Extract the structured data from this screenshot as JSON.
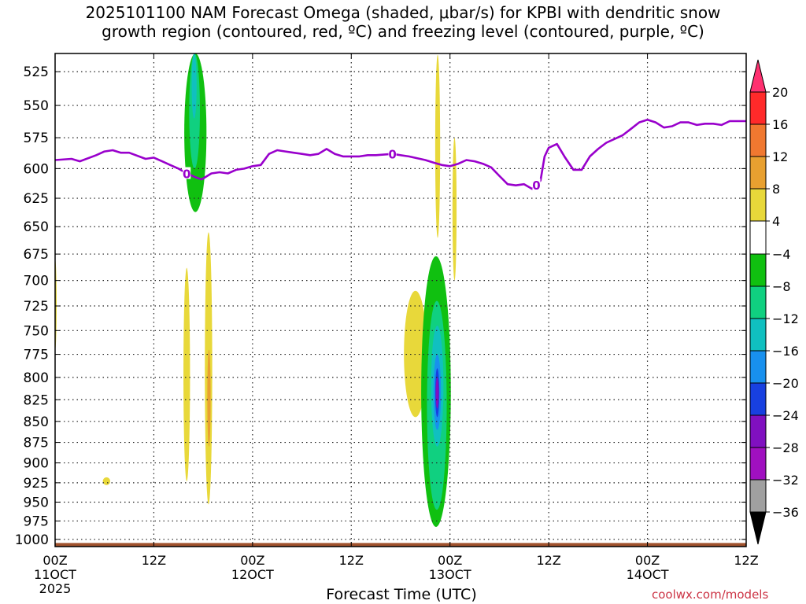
{
  "title": {
    "line1": "2025101100 NAM Forecast Omega (shaded, μbar/s) for KPBI with dendritic snow",
    "line2": "growth region (contoured, red, ºC) and freezing level (contoured, purple, ºC)"
  },
  "credit": "coolwx.com/models",
  "chart_data": {
    "type": "time-height cross section (filled contour)",
    "xlabel": "Forecast Time (UTC)",
    "ylabel": "",
    "x_ticks": [
      {
        "hour": 0,
        "lines": [
          "00Z",
          "11OCT",
          "2025"
        ]
      },
      {
        "hour": 12,
        "lines": [
          "12Z"
        ]
      },
      {
        "hour": 24,
        "lines": [
          "00Z",
          "12OCT"
        ]
      },
      {
        "hour": 36,
        "lines": [
          "12Z"
        ]
      },
      {
        "hour": 48,
        "lines": [
          "00Z",
          "13OCT"
        ]
      },
      {
        "hour": 60,
        "lines": [
          "12Z"
        ]
      },
      {
        "hour": 72,
        "lines": [
          "00Z",
          "14OCT"
        ]
      },
      {
        "hour": 84,
        "lines": [
          "12Z"
        ]
      }
    ],
    "y_ticks": [
      525,
      550,
      575,
      600,
      625,
      650,
      675,
      700,
      725,
      750,
      775,
      800,
      825,
      850,
      875,
      900,
      925,
      950,
      975,
      1000
    ],
    "ylim_hpa": [
      1010,
      512
    ],
    "xlim_hours": [
      0,
      84
    ],
    "grid": true,
    "colorbar": {
      "labels": [
        "20",
        "16",
        "12",
        "8",
        "4",
        "−4",
        "−8",
        "−12",
        "−16",
        "−20",
        "−24",
        "−28",
        "−32",
        "−36"
      ],
      "colors_top_to_bottom": [
        "#ff3070",
        "#ff2a2a",
        "#f07830",
        "#e8a030",
        "#e8d83a",
        "#ffffff",
        "#10c010",
        "#10d080",
        "#10c0c0",
        "#1890ee",
        "#1840e0",
        "#8010c0",
        "#a010c0",
        "#a0a0a0",
        "#000000"
      ]
    },
    "freezing_level": {
      "label": "0",
      "color": "#9900cc",
      "points": [
        [
          0,
          593
        ],
        [
          2,
          592
        ],
        [
          3,
          594
        ],
        [
          5,
          589
        ],
        [
          6,
          586
        ],
        [
          7,
          585
        ],
        [
          8,
          587
        ],
        [
          9,
          587
        ],
        [
          11,
          592
        ],
        [
          12,
          591
        ],
        [
          13,
          594
        ],
        [
          14,
          597
        ],
        [
          15,
          600
        ],
        [
          16,
          604
        ],
        [
          17,
          607
        ],
        [
          17.8,
          609
        ],
        [
          19,
          604
        ],
        [
          20,
          603
        ],
        [
          21,
          604
        ],
        [
          22,
          601
        ],
        [
          23,
          600
        ],
        [
          24,
          598
        ],
        [
          25,
          597
        ],
        [
          26,
          588
        ],
        [
          27,
          585
        ],
        [
          28,
          586
        ],
        [
          29,
          587
        ],
        [
          30,
          588
        ],
        [
          31,
          589
        ],
        [
          32,
          588
        ],
        [
          33,
          584
        ],
        [
          34,
          588
        ],
        [
          35,
          590
        ],
        [
          37,
          590
        ],
        [
          38,
          589
        ],
        [
          39,
          589
        ],
        [
          41,
          588
        ],
        [
          43,
          590
        ],
        [
          45,
          593
        ],
        [
          46,
          595
        ],
        [
          47,
          597
        ],
        [
          48,
          598
        ],
        [
          49,
          596
        ],
        [
          50,
          593
        ],
        [
          51,
          594
        ],
        [
          52,
          596
        ],
        [
          53,
          599
        ],
        [
          54,
          606
        ],
        [
          55,
          613
        ],
        [
          56,
          614
        ],
        [
          57,
          613
        ],
        [
          58,
          617
        ],
        [
          59,
          610
        ],
        [
          59.5,
          590
        ],
        [
          60,
          583
        ],
        [
          61,
          580
        ],
        [
          62,
          591
        ],
        [
          63,
          601
        ],
        [
          64,
          601
        ],
        [
          65,
          590
        ],
        [
          66,
          584
        ],
        [
          67,
          579
        ],
        [
          68,
          576
        ],
        [
          69,
          573
        ],
        [
          70,
          568
        ],
        [
          71,
          563
        ],
        [
          72,
          561
        ],
        [
          73,
          563
        ],
        [
          74,
          567
        ],
        [
          75,
          566
        ],
        [
          76,
          563
        ],
        [
          77,
          563
        ],
        [
          78,
          565
        ],
        [
          79,
          564
        ],
        [
          80,
          564
        ],
        [
          81,
          565
        ],
        [
          82,
          562
        ],
        [
          83,
          562
        ],
        [
          84,
          562
        ]
      ],
      "contour_labels_at_hours": [
        16,
        41,
        58.5
      ]
    },
    "omega_regions": [
      {
        "value": "-8",
        "hour_range": [
          15.7,
          18.4
        ],
        "hpa_range": [
          512,
          637
        ]
      },
      {
        "value": "-12",
        "hour_range": [
          16.3,
          17.6
        ],
        "hpa_range": [
          512,
          600
        ]
      },
      {
        "value": "-16",
        "hour_range": [
          16.6,
          17.2
        ],
        "hpa_range": [
          512,
          560
        ]
      },
      {
        "value": "4",
        "hour_range": [
          15.6,
          16.4
        ],
        "hpa_range": [
          688,
          923
        ]
      },
      {
        "value": "4",
        "hour_range": [
          18.2,
          19.1
        ],
        "hpa_range": [
          655,
          953
        ]
      },
      {
        "value": "8",
        "hour_range": [
          18.5,
          18.9
        ],
        "hpa_range": [
          770,
          880
        ]
      },
      {
        "value": "4",
        "hour_range": [
          -0.1,
          0.1
        ],
        "hpa_range": [
          680,
          770
        ]
      },
      {
        "value": "4",
        "hour_range": [
          5.8,
          6.7
        ],
        "hpa_range": [
          918,
          928
        ]
      },
      {
        "value": "4",
        "hour_range": [
          46.2,
          46.8
        ],
        "hpa_range": [
          513,
          660
        ]
      },
      {
        "value": "4",
        "hour_range": [
          48.3,
          48.8
        ],
        "hpa_range": [
          575,
          700
        ]
      },
      {
        "value": "4",
        "hour_range": [
          42.4,
          45.2
        ],
        "hpa_range": [
          710,
          845
        ]
      },
      {
        "value": "-8",
        "hour_range": [
          44.5,
          48.1
        ],
        "hpa_range": [
          677,
          983
        ]
      },
      {
        "value": "-12",
        "hour_range": [
          45.2,
          47.6
        ],
        "hpa_range": [
          720,
          960
        ]
      },
      {
        "value": "-16",
        "hour_range": [
          45.7,
          47.2
        ],
        "hpa_range": [
          745,
          880
        ]
      },
      {
        "value": "-20",
        "hour_range": [
          46.0,
          46.9
        ],
        "hpa_range": [
          775,
          860
        ]
      },
      {
        "value": "-24",
        "hour_range": [
          46.2,
          46.7
        ],
        "hpa_range": [
          790,
          845
        ]
      },
      {
        "value": "-28",
        "hour_range": [
          46.3,
          46.6
        ],
        "hpa_range": [
          800,
          835
        ]
      }
    ],
    "surface_terrain": {
      "color": "#a0522d",
      "hpa_top": 1005
    }
  }
}
